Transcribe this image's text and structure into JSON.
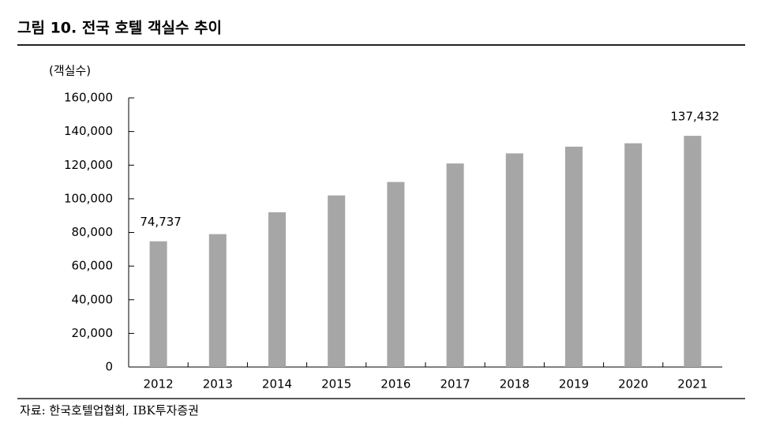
{
  "chart_data": {
    "type": "bar",
    "title": "그림 10. 전국 호텔 객실수 추이",
    "y_axis_label": "(객실수)",
    "source": "자료: 한국호텔업협회, IBK투자증권",
    "categories": [
      "2012",
      "2013",
      "2014",
      "2015",
      "2016",
      "2017",
      "2018",
      "2019",
      "2020",
      "2021"
    ],
    "values": [
      74737,
      79000,
      92000,
      102000,
      110000,
      121000,
      127000,
      131000,
      133000,
      137432
    ],
    "value_labels": [
      "74,737",
      null,
      null,
      null,
      null,
      null,
      null,
      null,
      null,
      "137,432"
    ],
    "color": "#a6a6a6",
    "ylim": [
      0,
      160000
    ],
    "yticks": [
      0,
      {
        "value": 20000,
        "label": "20,000"
      },
      {
        "value": 40000,
        "label": "40,000"
      },
      {
        "value": 60000,
        "label": "60,000"
      },
      {
        "value": 80000,
        "label": "80,000"
      },
      {
        "value": 100000,
        "label": "100,000"
      },
      {
        "value": 120000,
        "label": "120,000"
      },
      {
        "value": 140000,
        "label": "140,000"
      },
      {
        "value": 160000,
        "label": "160,000"
      }
    ],
    "grid": false
  }
}
